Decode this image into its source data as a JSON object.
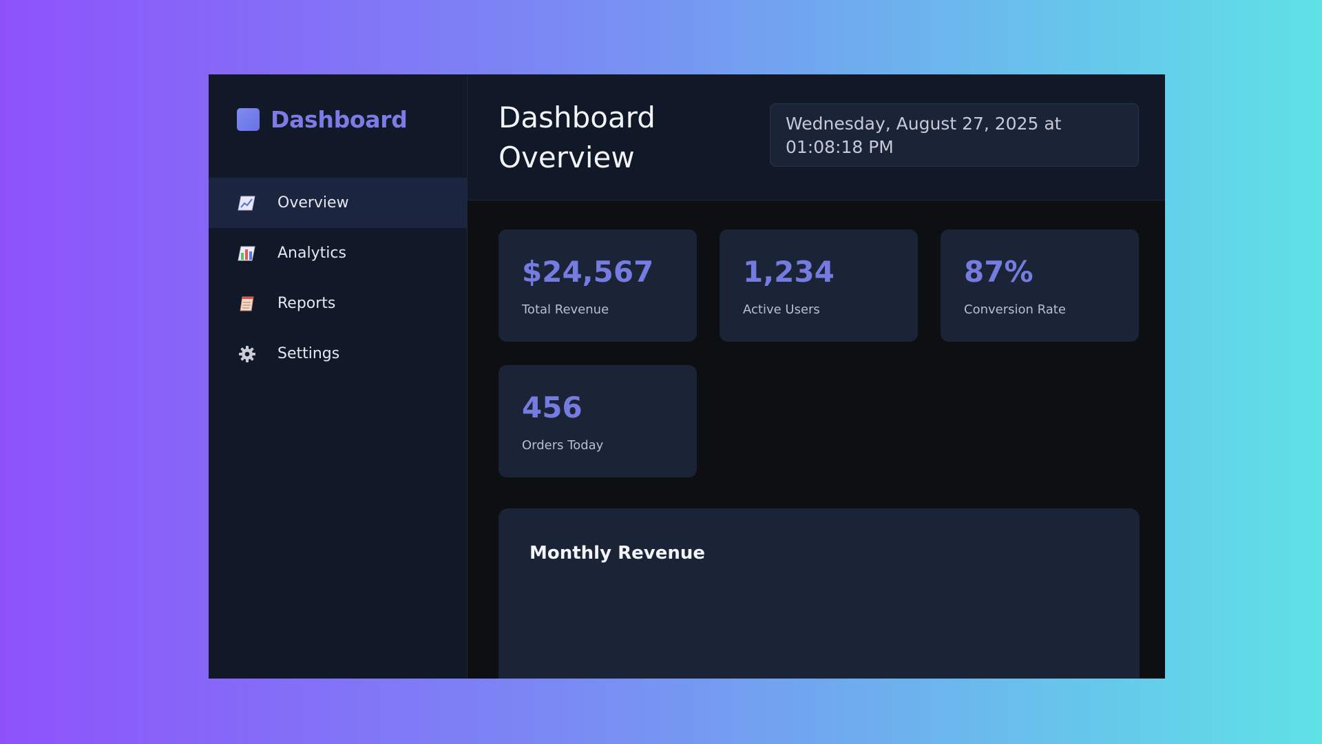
{
  "sidebar": {
    "brand": {
      "title": "Dashboard",
      "logo_color": "#7f8cf0"
    },
    "items": [
      {
        "label": "Overview",
        "icon": "chart-trend-icon",
        "active": true
      },
      {
        "label": "Analytics",
        "icon": "bar-chart-icon",
        "active": false
      },
      {
        "label": "Reports",
        "icon": "document-icon",
        "active": false
      },
      {
        "label": "Settings",
        "icon": "gear-icon",
        "active": false
      }
    ]
  },
  "header": {
    "title": "Dashboard Overview",
    "datetime": "Wednesday, August 27, 2025 at 01:08:18 PM"
  },
  "stats": [
    {
      "value": "$24,567",
      "label": "Total Revenue"
    },
    {
      "value": "1,234",
      "label": "Active Users"
    },
    {
      "value": "87%",
      "label": "Conversion Rate"
    },
    {
      "value": "456",
      "label": "Orders Today"
    }
  ],
  "chart": {
    "title": "Monthly Revenue"
  },
  "colors": {
    "accent": "#767be0",
    "sidebar_bg": "#111828",
    "card_bg": "#1b2436",
    "active_nav_bg": "#1c2540"
  }
}
